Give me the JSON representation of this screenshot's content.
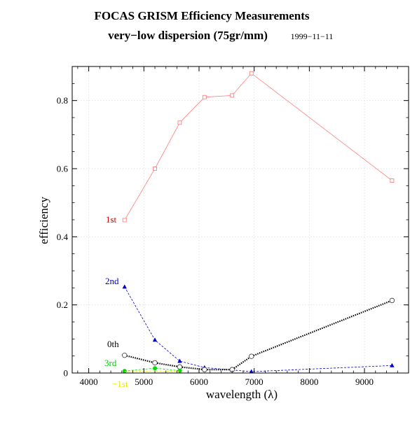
{
  "chart_data": {
    "type": "line",
    "title": "FOCAS  GRISM  Efficiency  Measurements",
    "subtitle": "very−low  dispersion  (75gr/mm)",
    "date": "1999−11−11",
    "xlabel": "wavelength  (λ)",
    "ylabel": "efficiency",
    "xlim": [
      3700,
      9800
    ],
    "ylim": [
      0,
      0.9
    ],
    "grid": true,
    "xticks": [
      4000,
      5000,
      6000,
      7000,
      8000,
      9000
    ],
    "xtick_labels": [
      "4000",
      "5000",
      "6000",
      "7000",
      "8000",
      "9000"
    ],
    "yticks": [
      0,
      0.2,
      0.4,
      0.6,
      0.8
    ],
    "ytick_labels": [
      "0",
      "0.2",
      "0.4",
      "0.6",
      "0.8"
    ],
    "series": [
      {
        "name": "1st",
        "color": "#ff8080",
        "label_color": "#cc0000",
        "marker": "open-square",
        "line": "solid",
        "x": [
          4650,
          5200,
          5650,
          6100,
          6600,
          6950,
          9500
        ],
        "y": [
          0.449,
          0.6,
          0.735,
          0.81,
          0.815,
          0.88,
          0.565
        ]
      },
      {
        "name": "2nd",
        "color": "#0000cc",
        "label_color": "#0000cc",
        "marker": "filled-triangle",
        "line": "dashed",
        "x": [
          4650,
          5200,
          5650,
          6100,
          6600,
          6950,
          9500
        ],
        "y": [
          0.253,
          0.097,
          0.035,
          0.016,
          0.009,
          0.004,
          0.022
        ]
      },
      {
        "name": "0th",
        "color": "#000000",
        "label_color": "#000000",
        "marker": "open-circle",
        "line": "dotted",
        "x": [
          4650,
          5200,
          5650,
          6100,
          6600,
          6950,
          9500
        ],
        "y": [
          0.052,
          0.03,
          0.018,
          0.01,
          0.01,
          0.049,
          0.213
        ]
      },
      {
        "name": "3rd",
        "color": "#00dd00",
        "label_color": "#00cc00",
        "marker": "filled-circle",
        "line": "dashed",
        "x": [
          4650,
          5200,
          5650
        ],
        "y": [
          0.006,
          0.014,
          0.007
        ]
      },
      {
        "name": "−1st",
        "color": "#e6e600",
        "label_color": "#e6e600",
        "marker": "none",
        "line": "dashed",
        "x": [
          4650,
          5200,
          5650
        ],
        "y": [
          0.004,
          0.006,
          0.005
        ]
      }
    ]
  }
}
